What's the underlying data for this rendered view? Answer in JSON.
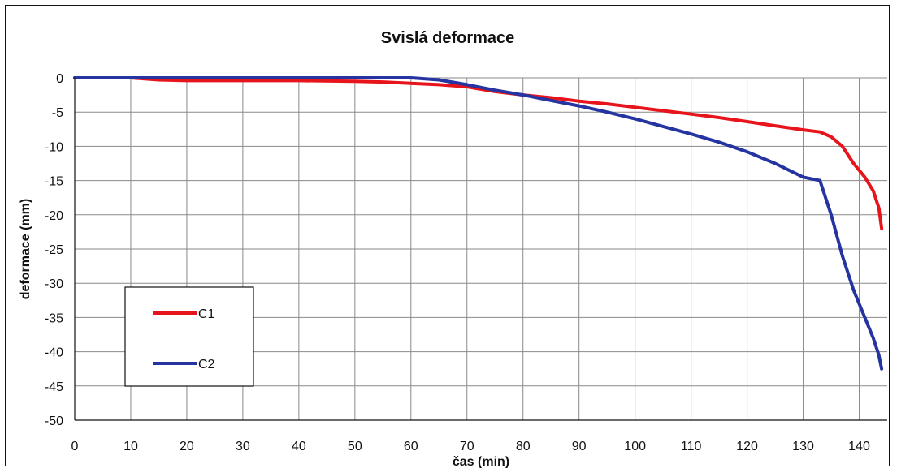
{
  "chart_data": {
    "type": "line",
    "title": "Svislá deformace",
    "xlabel": "čas (min)",
    "ylabel": "deformace (mm)",
    "xlim": [
      0,
      145
    ],
    "ylim": [
      -50,
      0
    ],
    "xticks": [
      0,
      10,
      20,
      30,
      40,
      50,
      60,
      70,
      80,
      90,
      100,
      110,
      120,
      130,
      140
    ],
    "yticks": [
      0,
      -5,
      -10,
      -15,
      -20,
      -25,
      -30,
      -35,
      -40,
      -45,
      -50
    ],
    "grid": true,
    "legend_position": "left",
    "series": [
      {
        "name": "C1",
        "color": "#e8141c",
        "x": [
          0,
          10,
          15,
          20,
          30,
          40,
          50,
          55,
          60,
          65,
          70,
          75,
          80,
          85,
          90,
          95,
          100,
          105,
          110,
          115,
          120,
          125,
          130,
          133,
          135,
          137,
          139,
          141,
          142.5,
          143.5,
          144
        ],
        "y": [
          0,
          0,
          -0.3,
          -0.4,
          -0.4,
          -0.4,
          -0.5,
          -0.6,
          -0.8,
          -1.0,
          -1.3,
          -2.0,
          -2.5,
          -2.9,
          -3.4,
          -3.8,
          -4.3,
          -4.8,
          -5.3,
          -5.8,
          -6.4,
          -7.0,
          -7.6,
          -7.9,
          -8.6,
          -10.0,
          -12.5,
          -14.5,
          -16.5,
          -19.0,
          -22.0
        ]
      },
      {
        "name": "C2",
        "color": "#2534a0",
        "x": [
          0,
          10,
          20,
          30,
          40,
          50,
          60,
          65,
          70,
          75,
          80,
          85,
          90,
          95,
          100,
          105,
          110,
          115,
          120,
          125,
          130,
          133,
          135,
          137,
          139,
          141,
          142.5,
          143.5,
          144
        ],
        "y": [
          0,
          0,
          0,
          0,
          0,
          0,
          0,
          -0.3,
          -1.0,
          -1.8,
          -2.5,
          -3.3,
          -4.1,
          -5.0,
          -6.0,
          -7.1,
          -8.2,
          -9.4,
          -10.8,
          -12.5,
          -14.5,
          -15.0,
          -20.0,
          -26.0,
          -31.0,
          -35.0,
          -38.0,
          -40.5,
          -42.5
        ]
      }
    ]
  }
}
